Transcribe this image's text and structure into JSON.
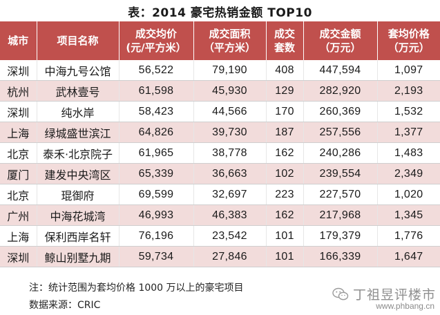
{
  "title": "表：2014 豪宅热销金额 TOP10",
  "headers": [
    {
      "line1": "城市",
      "line2": ""
    },
    {
      "line1": "项目名称",
      "line2": ""
    },
    {
      "line1": "成交均价",
      "line2": "(元/平方米）"
    },
    {
      "line1": "成交面积",
      "line2": "（平方米）"
    },
    {
      "line1": "成交",
      "line2": "套数"
    },
    {
      "line1": "成交金额",
      "line2": "（万元）"
    },
    {
      "line1": "套均价格",
      "line2": "（万元）"
    }
  ],
  "rows": [
    {
      "city": "深圳",
      "project": "中海九号公馆",
      "price": "56,522",
      "area": "79,190",
      "units": "408",
      "amount": "447,594",
      "avg": "1,097"
    },
    {
      "city": "杭州",
      "project": "武林壹号",
      "price": "61,598",
      "area": "45,930",
      "units": "129",
      "amount": "282,920",
      "avg": "2,193"
    },
    {
      "city": "深圳",
      "project": "纯水岸",
      "price": "58,423",
      "area": "44,566",
      "units": "170",
      "amount": "260,369",
      "avg": "1,532"
    },
    {
      "city": "上海",
      "project": "绿城盛世滨江",
      "price": "64,826",
      "area": "39,730",
      "units": "187",
      "amount": "257,556",
      "avg": "1,377"
    },
    {
      "city": "北京",
      "project": "泰禾·北京院子",
      "price": "61,965",
      "area": "38,778",
      "units": "162",
      "amount": "240,286",
      "avg": "1,483"
    },
    {
      "city": "厦门",
      "project": "建发中央湾区",
      "price": "65,339",
      "area": "36,663",
      "units": "102",
      "amount": "239,554",
      "avg": "2,349"
    },
    {
      "city": "北京",
      "project": "琨御府",
      "price": "69,599",
      "area": "32,697",
      "units": "223",
      "amount": "227,570",
      "avg": "1,020"
    },
    {
      "city": "广州",
      "project": "中海花城湾",
      "price": "46,993",
      "area": "46,383",
      "units": "162",
      "amount": "217,968",
      "avg": "1,345"
    },
    {
      "city": "上海",
      "project": "保利西岸名轩",
      "price": "76,196",
      "area": "23,542",
      "units": "101",
      "amount": "179,379",
      "avg": "1,776"
    },
    {
      "city": "深圳",
      "project": "鲸山别墅九期",
      "price": "59,734",
      "area": "27,846",
      "units": "101",
      "amount": "166,339",
      "avg": "1,647"
    }
  ],
  "note": "注：统计范围为套均价格 1000 万以上的豪宅项目",
  "source": "数据来源：CRIC",
  "watermark": {
    "text": "丁祖昱评楼市",
    "url": "www.phbang.cn",
    "icon": "wechat-icon"
  },
  "colors": {
    "header_bg": "#c0504d",
    "stripe": "#f2dcdb",
    "header_text": "#ffffff"
  }
}
